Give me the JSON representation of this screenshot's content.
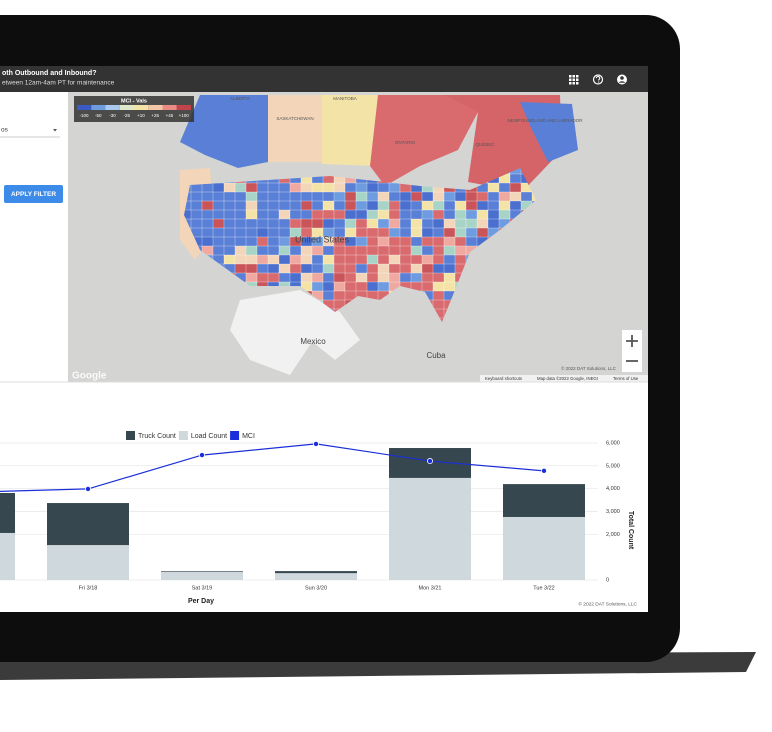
{
  "header": {
    "title": "oth Outbound and Inbound?",
    "subtitle": "etween 12am-4am PT for maintenance"
  },
  "filters": {
    "select_value": "os",
    "apply_button": "APPLY FILTER"
  },
  "map": {
    "legend_title": "MCI - Vals",
    "legend_labels": [
      "-100",
      "-50",
      "-30",
      "-25",
      "+10",
      "+25",
      "+45",
      "+100"
    ],
    "labels": [
      "ALBERTA",
      "MANITOBA",
      "SASKATCHEWAN",
      "ONTARIO",
      "QUEBEC",
      "NEWFOUNDLAND AND LABRADOR",
      "United States",
      "Mexico",
      "Cuba"
    ],
    "logo": "Google",
    "copyright": "© 2022 DAT Solutions, LLC",
    "footer": [
      "Keyboard shortcuts",
      "Map data ©2022 Google, INEGI",
      "Terms of Use"
    ]
  },
  "chart_data": {
    "type": "bar",
    "stacked": true,
    "categories": [
      null,
      "Fri 3/18",
      "Sat 3/19",
      "Sun 3/20",
      "Mon 3/21",
      "Tue 3/22"
    ],
    "series": [
      {
        "name": "Load Count",
        "color": "#cfd8dc",
        "values": [
          2060,
          1530,
          350,
          300,
          4470,
          2760
        ]
      },
      {
        "name": "Truck Count",
        "color": "#37474f",
        "values": [
          1750,
          1840,
          30,
          90,
          1310,
          1440
        ]
      },
      {
        "name": "MCI",
        "color": "#1a2fd9",
        "type": "line",
        "values": [
          3850,
          3990,
          5470,
          5960,
          5210,
          4780
        ]
      }
    ],
    "legend_order": [
      1,
      0,
      2
    ],
    "x_label": "Per Day",
    "y_label": "Total Count",
    "ylim": [
      0,
      6000
    ],
    "yticks": [
      {
        "value": 0,
        "label": "0"
      },
      {
        "value": 2000,
        "label": "2,000"
      },
      {
        "value": 3000,
        "label": "3,000"
      },
      {
        "value": 4000,
        "label": "4,000"
      },
      {
        "value": 5000,
        "label": "5,000"
      },
      {
        "value": 6000,
        "label": "6,000"
      }
    ],
    "grid": true,
    "footer": "© 2022 DAT Solutions, LLC"
  }
}
